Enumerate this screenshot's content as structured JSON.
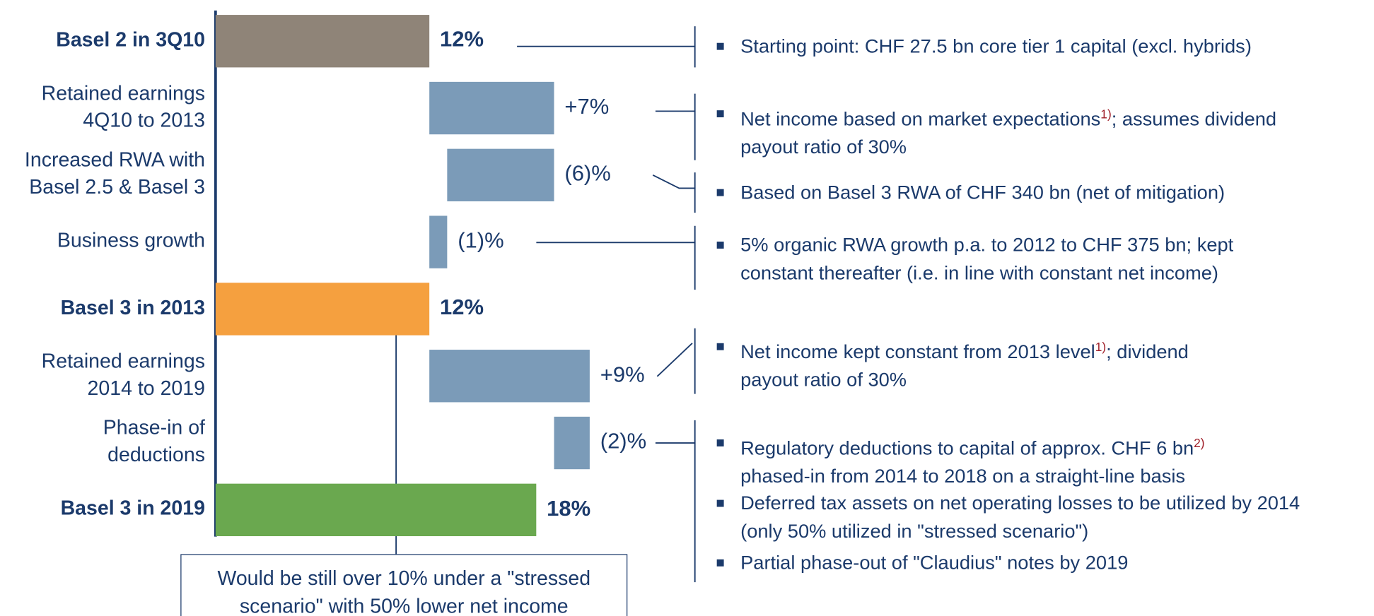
{
  "chart_data": {
    "type": "waterfall",
    "categories": [
      "Basel 2 in 3Q10",
      "Retained earnings\n4Q10 to 2013",
      "Increased RWA with\nBasel 2.5 & Basel 3",
      "Business growth",
      "Basel 3 in 2013",
      "Retained earnings\n2014 to 2019",
      "Phase-in of\ndeductions",
      "Basel 3 in 2019"
    ],
    "values": [
      12,
      7,
      -6,
      -1,
      12,
      9,
      -2,
      18
    ],
    "value_labels": [
      "12%",
      "+7%",
      "(6)%",
      "(1)%",
      "12%",
      "+9%",
      "(2)%",
      "18%"
    ],
    "colors": [
      "#8f8478",
      "#7b9bb8",
      "#7b9bb8",
      "#7b9bb8",
      "#f5a03f",
      "#7b9bb8",
      "#7b9bb8",
      "#6aa84f"
    ],
    "delta_color": "#7b9bb8",
    "annotation": "Would be still over 10% under a \"stressed\nscenario\" with 50% lower net income",
    "notes": [
      {
        "before": "Starting point: CHF 27.5 bn core tier 1 capital (excl. hybrids)"
      },
      {
        "before": "Net income based on market expectations",
        "footnote": "1)",
        "after": "; assumes dividend\npayout ratio of 30%"
      },
      {
        "before": "Based on Basel 3 RWA of CHF 340 bn (net of mitigation)"
      },
      {
        "before": "5% organic RWA growth p.a. to 2012 to CHF 375 bn; kept\nconstant thereafter (i.e. in line with constant net income)"
      },
      {
        "before": "Net income kept constant from 2013 level",
        "footnote": "1)",
        "after": "; dividend\npayout ratio of 30%"
      },
      {
        "before": "Regulatory deductions to capital of approx. CHF 6 bn",
        "footnote": "2)",
        "after": "\nphased-in from 2014 to 2018 on a straight-line basis"
      },
      {
        "before": "Deferred tax assets on net operating losses to be utilized by 2014\n(only 50% utilized in \"stressed scenario\")"
      },
      {
        "before": "Partial phase-out of \"Claudius\" notes by 2019"
      }
    ]
  }
}
